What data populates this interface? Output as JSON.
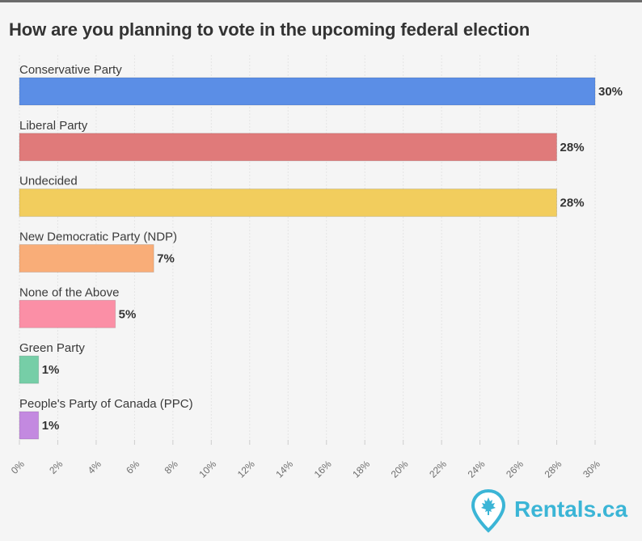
{
  "title": "How are you planning to vote in the upcoming federal election",
  "brand": {
    "name": "Rentals.ca",
    "color": "#3bb5d6"
  },
  "chart_data": {
    "type": "bar",
    "orientation": "horizontal",
    "title": "How are you planning to vote in the upcoming federal election",
    "categories": [
      "Conservative Party",
      "Liberal Party",
      "Undecided",
      "New Democratic Party (NDP)",
      "None of the Above",
      "Green Party",
      "People's Party of Canada (PPC)"
    ],
    "values": [
      30,
      28,
      28,
      7,
      5,
      1,
      1
    ],
    "value_labels": [
      "30%",
      "28%",
      "28%",
      "7%",
      "5%",
      "1%",
      "1%"
    ],
    "colors": [
      "#5b8ee6",
      "#e07a7a",
      "#f2cd5d",
      "#f9ad78",
      "#fb8fa6",
      "#76cea7",
      "#c389e0"
    ],
    "xlim": [
      0,
      30
    ],
    "x_ticks": [
      "0%",
      "2%",
      "4%",
      "6%",
      "8%",
      "10%",
      "12%",
      "14%",
      "16%",
      "18%",
      "20%",
      "22%",
      "24%",
      "26%",
      "28%",
      "30%"
    ],
    "grid": true,
    "legend": "none"
  }
}
